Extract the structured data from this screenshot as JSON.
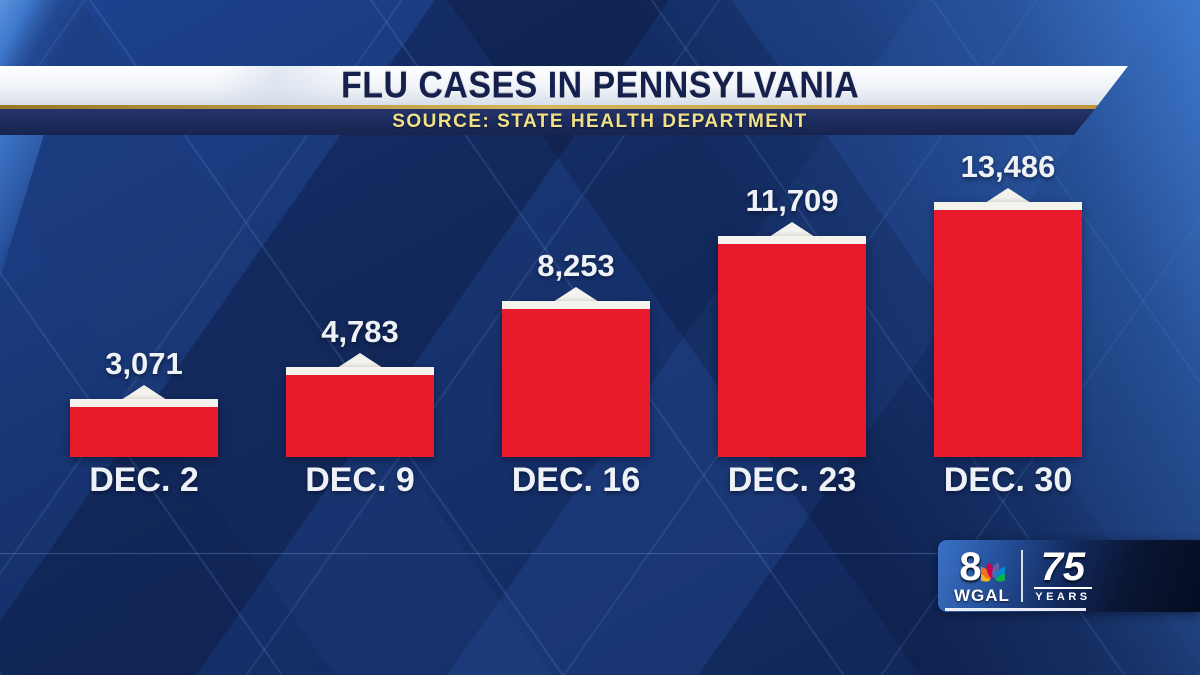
{
  "header": {
    "title": "FLU CASES IN PENNSYLVANIA",
    "source_line": "SOURCE: STATE HEALTH DEPARTMENT"
  },
  "chart_data": {
    "type": "bar",
    "title": "FLU CASES IN PENNSYLVANIA",
    "subtitle": "SOURCE: STATE HEALTH DEPARTMENT",
    "categories": [
      "DEC. 2",
      "DEC. 9",
      "DEC. 16",
      "DEC. 23",
      "DEC. 30"
    ],
    "values": [
      3071,
      4783,
      8253,
      11709,
      13486
    ],
    "value_labels": [
      "3,071",
      "4,783",
      "8,253",
      "11,709",
      "13,486"
    ],
    "ylim": [
      0,
      13486
    ],
    "grid": false,
    "legend": false,
    "bar_color": "#e91a2b",
    "bar_cap_color": "#f5f3ee",
    "label_color": "#eef2f7"
  },
  "branding": {
    "station_number": "8",
    "station_call": "WGAL",
    "network_icon": "nbc-peacock-icon",
    "anniversary_number": "75",
    "anniversary_label": "YEARS",
    "peacock_colors": [
      "#f5b31b",
      "#f37021",
      "#cc004c",
      "#6460aa",
      "#0089d0",
      "#0db14b"
    ]
  },
  "colors": {
    "background_navy": "#142c66",
    "banner_white": "#f4f6f9",
    "banner_gold": "#c9a23f",
    "source_strip_navy": "#1c2a5c",
    "title_navy": "#16204d",
    "source_text_gold": "#f0e189",
    "bar_red": "#e91a2b",
    "text_white": "#eef2f7",
    "corner_blue": "#3d76ca"
  }
}
